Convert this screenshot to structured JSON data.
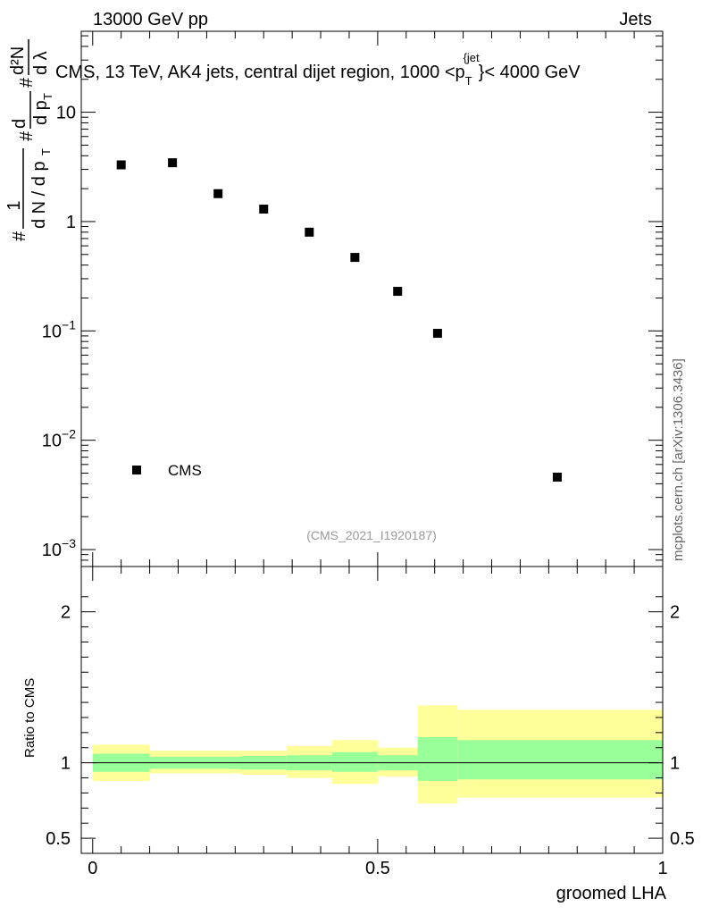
{
  "header": {
    "energy_label": "13000 GeV pp",
    "category_label": "Jets"
  },
  "title": {
    "main": "CMS, 13 TeV, AK4 jets, central dijet region, 1000 <p",
    "sub": "T",
    "sup": "{jet",
    "rest": "}< 4000 GeV"
  },
  "watermark": "mcplots.cern.ch [arXiv:1306.3436]",
  "analysis_id": "(CMS_2021_I1920187)",
  "chart_data": [
    {
      "type": "scatter",
      "panel": "main",
      "ylabel": "1/dN/dp_T d²N/dp_T dλ",
      "yscale": "log",
      "ylim": [
        0.0007,
        55
      ],
      "xlim": [
        -0.02,
        1.0
      ],
      "y_ticks": [
        {
          "value": 0.001,
          "base": "10",
          "exp": "−3"
        },
        {
          "value": 0.01,
          "base": "10",
          "exp": "−2"
        },
        {
          "value": 0.1,
          "base": "10",
          "exp": "−1"
        },
        {
          "value": 1,
          "base": "1",
          "exp": ""
        },
        {
          "value": 10,
          "base": "10",
          "exp": ""
        }
      ],
      "legend": {
        "label": "CMS",
        "position": "bottom-left"
      },
      "series": [
        {
          "name": "CMS",
          "x": [
            0.05,
            0.14,
            0.22,
            0.3,
            0.38,
            0.46,
            0.535,
            0.605,
            0.815
          ],
          "y": [
            3.3,
            3.45,
            1.8,
            1.3,
            0.8,
            0.47,
            0.23,
            0.095,
            0.0046
          ]
        }
      ]
    },
    {
      "type": "area",
      "panel": "ratio",
      "ylabel": "Ratio to CMS",
      "xlabel": "groomed LHA",
      "ylim": [
        0.4,
        2.3
      ],
      "xlim": [
        -0.02,
        1.0
      ],
      "x_ticks": [
        "0",
        "0.5",
        "1"
      ],
      "y_ticks": [
        "0.5",
        "1",
        "2"
      ],
      "reference_line": 1,
      "bins": [
        {
          "x0": 0.0,
          "x1": 0.1,
          "inner": [
            0.94,
            1.06
          ],
          "outer": [
            0.88,
            1.12
          ]
        },
        {
          "x0": 0.1,
          "x1": 0.26,
          "inner": [
            0.96,
            1.04
          ],
          "outer": [
            0.93,
            1.08
          ]
        },
        {
          "x0": 0.26,
          "x1": 0.34,
          "inner": [
            0.955,
            1.045
          ],
          "outer": [
            0.92,
            1.08
          ]
        },
        {
          "x0": 0.34,
          "x1": 0.42,
          "inner": [
            0.95,
            1.05
          ],
          "outer": [
            0.9,
            1.11
          ]
        },
        {
          "x0": 0.42,
          "x1": 0.5,
          "inner": [
            0.94,
            1.07
          ],
          "outer": [
            0.86,
            1.15
          ]
        },
        {
          "x0": 0.5,
          "x1": 0.57,
          "inner": [
            0.95,
            1.05
          ],
          "outer": [
            0.91,
            1.1
          ]
        },
        {
          "x0": 0.57,
          "x1": 0.64,
          "inner": [
            0.88,
            1.17
          ],
          "outer": [
            0.73,
            1.38
          ]
        },
        {
          "x0": 0.64,
          "x1": 1.0,
          "inner": [
            0.89,
            1.15
          ],
          "outer": [
            0.77,
            1.35
          ]
        }
      ],
      "colors": {
        "inner": "#99ff99",
        "outer": "#ffff99",
        "line": "#000000",
        "points": "#000000"
      }
    }
  ]
}
